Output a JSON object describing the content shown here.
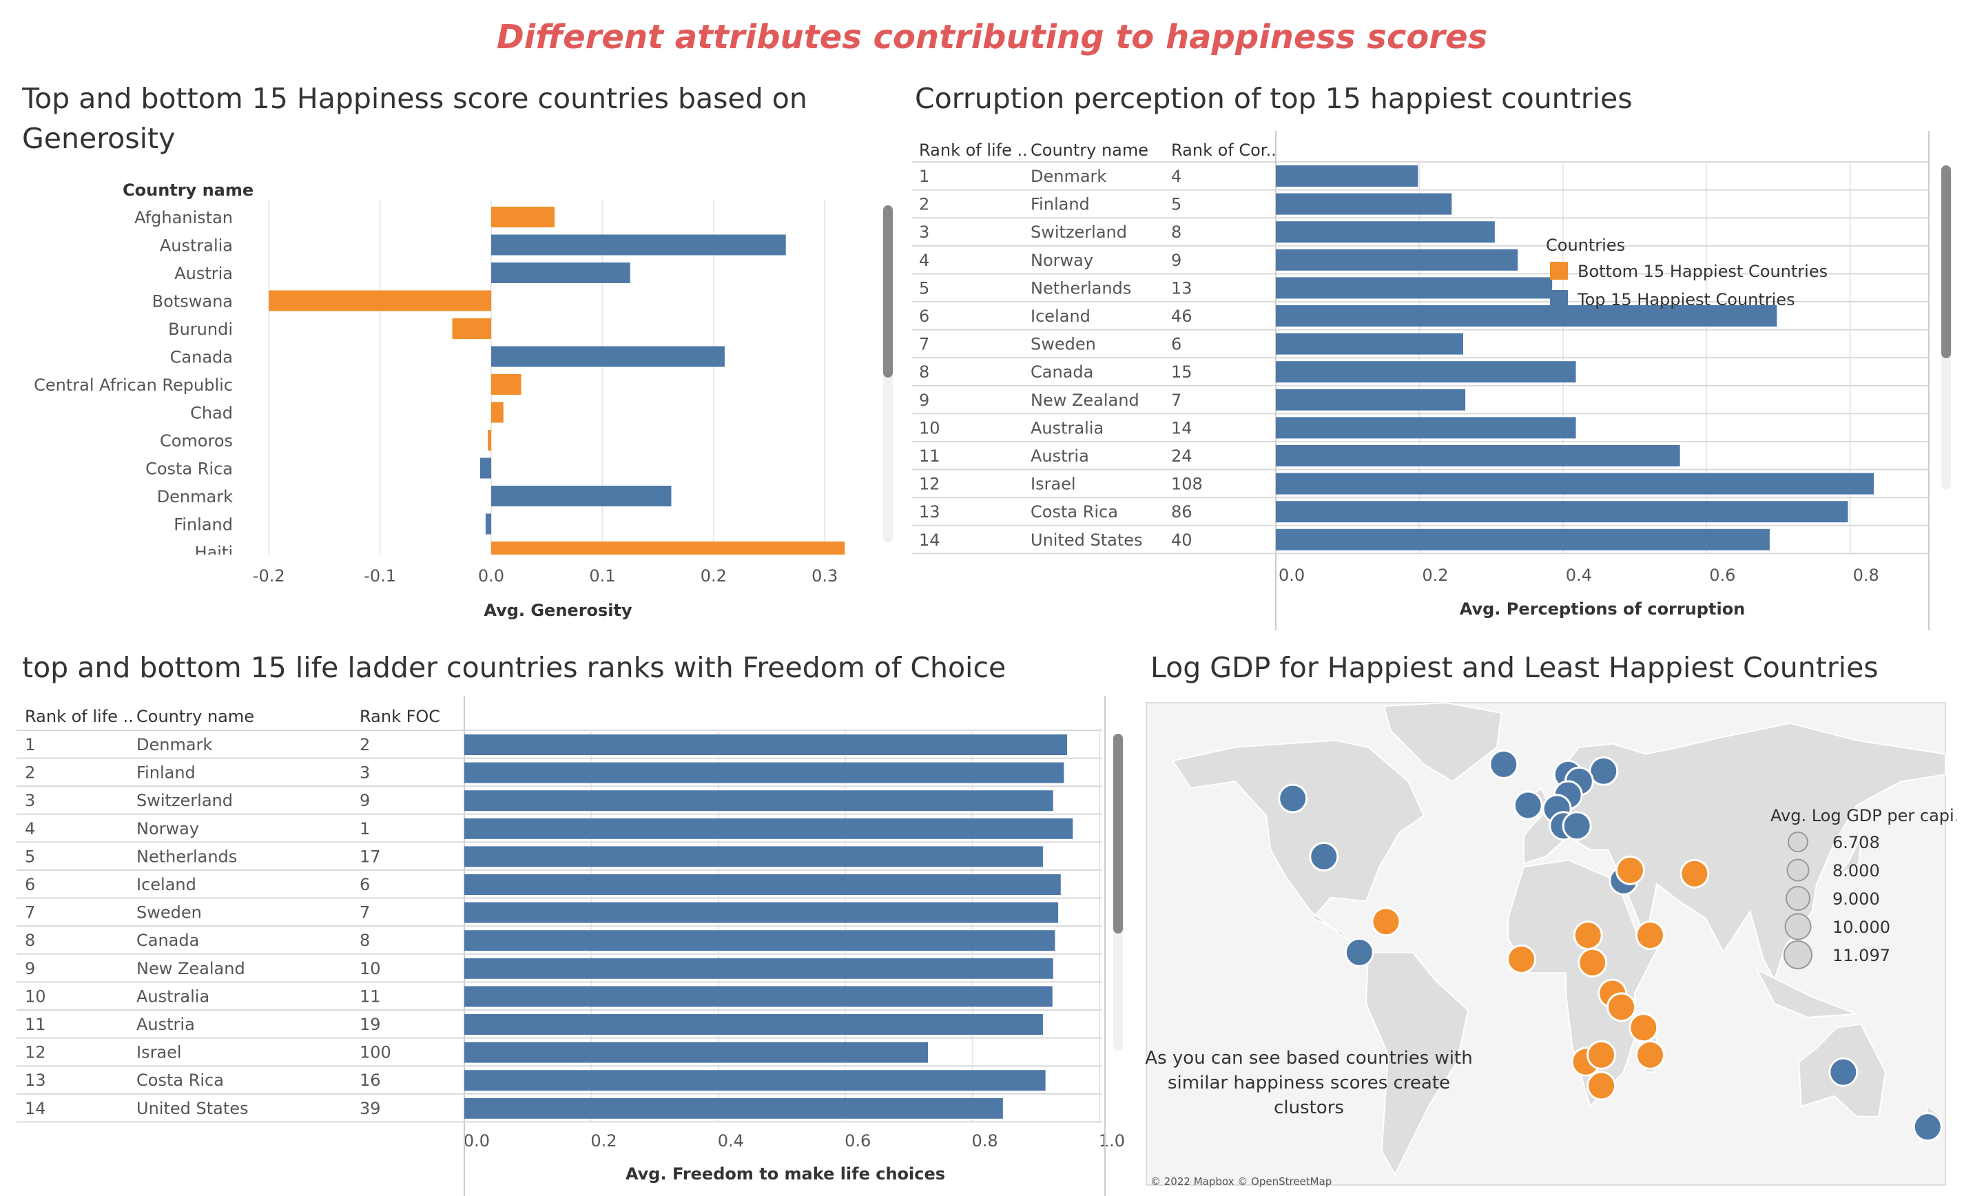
{
  "title": "Different attributes contributing to happiness scores",
  "colors": {
    "top": "#4e79a7",
    "bottom": "#f28e2b",
    "grid": "#e8e8e8",
    "rowline": "#d9d9d9",
    "map_land": "#dedede",
    "map_water": "#f4f4f4",
    "title": "#e05a5a"
  },
  "generosity": {
    "title": "Top and bottom 15 Happiness score countries based on Generosity",
    "row_header": "Country name",
    "axis_label": "Avg. Generosity"
  },
  "corruption": {
    "title": "Corruption perception of top 15 happiest countries",
    "headers": [
      "Rank of life ..",
      "Country name",
      "Rank of Cor.."
    ],
    "axis_label": "Avg. Perceptions of corruption",
    "legend": {
      "title": "Countries",
      "items": [
        {
          "label": "Bottom 15 Happiest Countries",
          "color": "#f28e2b"
        },
        {
          "label": "Top 15 Happiest Countries",
          "color": "#4e79a7"
        }
      ]
    }
  },
  "freedom": {
    "title": "top  and bottom 15 life ladder  countries ranks with Freedom of Choice",
    "headers": [
      "Rank of life ..",
      "Country name",
      "Rank FOC"
    ],
    "axis_label": "Avg. Freedom to make life choices"
  },
  "map": {
    "title": "Log GDP for Happiest and Least Happiest Countries",
    "size_legend_title": "Avg. Log GDP per capi..",
    "size_legend_values": [
      "6.708",
      "8.000",
      "9.000",
      "10.000",
      "11.097"
    ],
    "note": "As you can see based countries with similar happiness scores create clustors",
    "attribution": "© 2022 Mapbox © OpenStreetMap"
  },
  "chart_data": [
    {
      "type": "bar",
      "orientation": "horizontal",
      "title": "Top and bottom 15 Happiness score countries based on Generosity",
      "ylabel": "Country name",
      "xlabel": "Avg. Generosity",
      "xlim": [
        -0.2,
        0.35
      ],
      "xticks": [
        "-0.2",
        "-0.1",
        "0.0",
        "0.1",
        "0.2",
        "0.3"
      ],
      "grid": true,
      "categories": [
        "Afghanistan",
        "Australia",
        "Austria",
        "Botswana",
        "Burundi",
        "Canada",
        "Central African Republic",
        "Chad",
        "Comoros",
        "Costa Rica",
        "Denmark",
        "Finland",
        "Haiti"
      ],
      "values": [
        0.057,
        0.265,
        0.125,
        -0.2,
        -0.035,
        0.21,
        0.027,
        0.011,
        -0.003,
        -0.01,
        0.162,
        -0.005,
        0.318
      ],
      "groups": [
        "bottom",
        "top",
        "top",
        "bottom",
        "bottom",
        "top",
        "bottom",
        "bottom",
        "bottom",
        "top",
        "top",
        "top",
        "bottom"
      ]
    },
    {
      "type": "bar",
      "orientation": "horizontal",
      "title": "Corruption perception of top 15 happiest countries",
      "xlabel": "Avg. Perceptions of corruption",
      "xlim": [
        0,
        0.92
      ],
      "xticks": [
        "0.0",
        "0.2",
        "0.4",
        "0.6",
        "0.8"
      ],
      "rank_life": [
        1,
        2,
        3,
        4,
        5,
        6,
        7,
        8,
        9,
        10,
        11,
        12,
        13,
        14
      ],
      "categories": [
        "Denmark",
        "Finland",
        "Switzerland",
        "Norway",
        "Netherlands",
        "Iceland",
        "Sweden",
        "Canada",
        "New Zealand",
        "Australia",
        "Austria",
        "Israel",
        "Costa Rica",
        "United States"
      ],
      "rank_corruption": [
        4,
        5,
        8,
        9,
        13,
        46,
        6,
        15,
        7,
        14,
        24,
        108,
        86,
        40
      ],
      "values": [
        0.198,
        0.245,
        0.305,
        0.337,
        0.385,
        0.698,
        0.261,
        0.418,
        0.264,
        0.418,
        0.563,
        0.833,
        0.797,
        0.688
      ]
    },
    {
      "type": "bar",
      "orientation": "horizontal",
      "title": "top  and bottom 15 life ladder  countries ranks with Freedom of Choice",
      "xlabel": "Avg. Freedom to make life choices",
      "xlim": [
        0,
        1.02
      ],
      "xticks": [
        "0.0",
        "0.2",
        "0.4",
        "0.6",
        "0.8",
        "1.0"
      ],
      "rank_life": [
        1,
        2,
        3,
        4,
        5,
        6,
        7,
        8,
        9,
        10,
        11,
        12,
        13,
        14
      ],
      "categories": [
        "Denmark",
        "Finland",
        "Switzerland",
        "Norway",
        "Netherlands",
        "Iceland",
        "Sweden",
        "Canada",
        "New Zealand",
        "Australia",
        "Austria",
        "Israel",
        "Costa Rica",
        "United States"
      ],
      "rank_foc": [
        2,
        3,
        9,
        1,
        17,
        6,
        7,
        8,
        10,
        11,
        19,
        100,
        16,
        39
      ],
      "values": [
        0.949,
        0.944,
        0.927,
        0.958,
        0.911,
        0.939,
        0.935,
        0.93,
        0.927,
        0.926,
        0.911,
        0.73,
        0.915,
        0.848
      ]
    },
    {
      "type": "scatter",
      "subtype": "map",
      "title": "Log GDP for Happiest and Least Happiest Countries",
      "size_label": "Avg. Log GDP per capi..",
      "points": [
        {
          "lon": -114,
          "lat": 55,
          "group": "top"
        },
        {
          "lon": -100,
          "lat": 38,
          "group": "top"
        },
        {
          "lon": -84,
          "lat": 10,
          "group": "top"
        },
        {
          "lon": -19,
          "lat": 65,
          "group": "top"
        },
        {
          "lon": 10,
          "lat": 62,
          "group": "top"
        },
        {
          "lon": 26,
          "lat": 63,
          "group": "top"
        },
        {
          "lon": 15,
          "lat": 60,
          "group": "top"
        },
        {
          "lon": 10,
          "lat": 56,
          "group": "top"
        },
        {
          "lon": -8,
          "lat": 53,
          "group": "top"
        },
        {
          "lon": 5,
          "lat": 52,
          "group": "top"
        },
        {
          "lon": 8,
          "lat": 47,
          "group": "top"
        },
        {
          "lon": 14,
          "lat": 47,
          "group": "top"
        },
        {
          "lon": 35,
          "lat": 31,
          "group": "top"
        },
        {
          "lon": 134,
          "lat": -25,
          "group": "top"
        },
        {
          "lon": 172,
          "lat": -41,
          "group": "top"
        },
        {
          "lon": -72,
          "lat": 19,
          "group": "bottom"
        },
        {
          "lon": 38,
          "lat": 34,
          "group": "bottom"
        },
        {
          "lon": 67,
          "lat": 33,
          "group": "bottom"
        },
        {
          "lon": 19,
          "lat": 15,
          "group": "bottom"
        },
        {
          "lon": 47,
          "lat": 15,
          "group": "bottom"
        },
        {
          "lon": -11,
          "lat": 8,
          "group": "bottom"
        },
        {
          "lon": 21,
          "lat": 7,
          "group": "bottom"
        },
        {
          "lon": 30,
          "lat": -2,
          "group": "bottom"
        },
        {
          "lon": 34,
          "lat": -6,
          "group": "bottom"
        },
        {
          "lon": 44,
          "lat": -12,
          "group": "bottom"
        },
        {
          "lon": 18,
          "lat": -22,
          "group": "bottom"
        },
        {
          "lon": 25,
          "lat": -20,
          "group": "bottom"
        },
        {
          "lon": 47,
          "lat": -20,
          "group": "bottom"
        },
        {
          "lon": 25,
          "lat": -29,
          "group": "bottom"
        }
      ]
    }
  ]
}
